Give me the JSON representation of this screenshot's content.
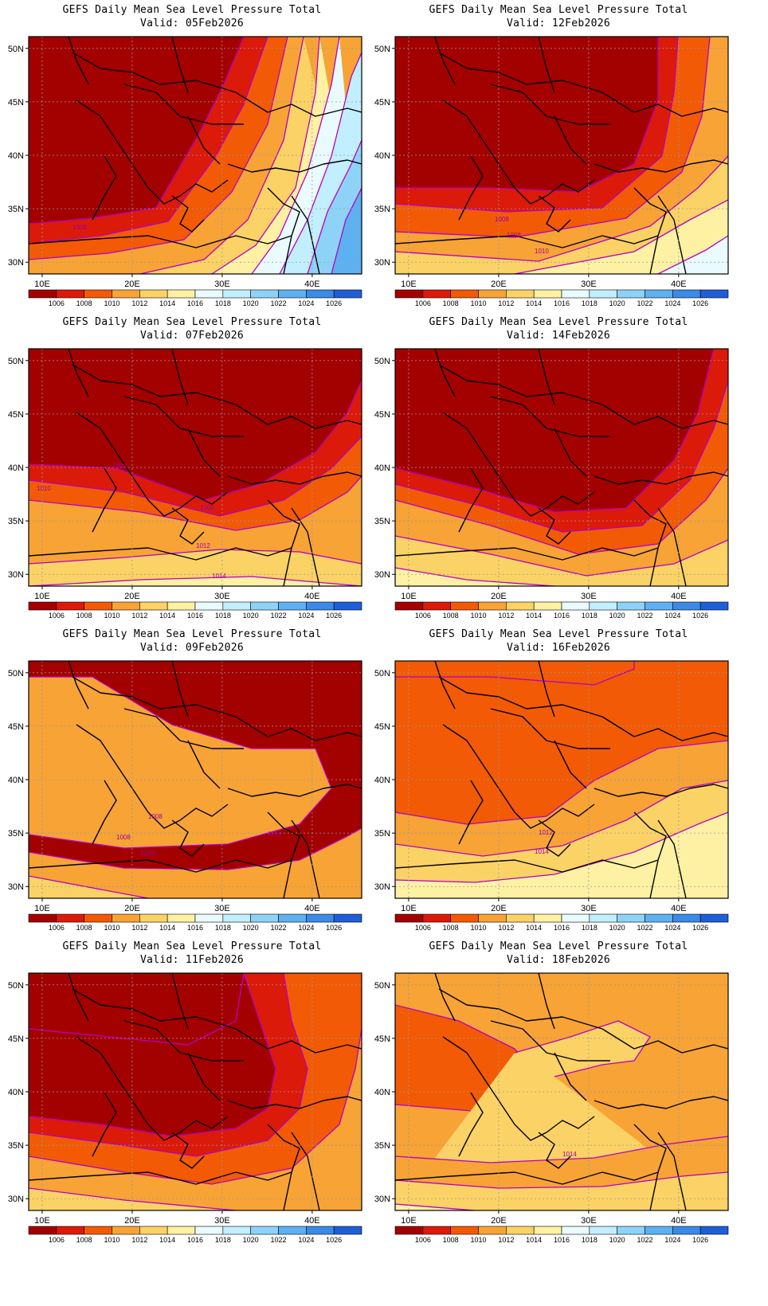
{
  "title_line1": "GEFS Daily Mean Sea Level Pressure Total",
  "lon_labels": [
    "10E",
    "20E",
    "30E",
    "40E"
  ],
  "lat_labels": [
    "50N",
    "45N",
    "40N",
    "35N",
    "30N"
  ],
  "colorbar": {
    "labels": [
      "1006",
      "1008",
      "1010",
      "1012",
      "1014",
      "1016",
      "1018",
      "1020",
      "1022",
      "1024",
      "1026"
    ],
    "colors": [
      "#a30000",
      "#dc1a0a",
      "#f25a05",
      "#f7a336",
      "#fbd265",
      "#fef1a3",
      "#e9fbff",
      "#c2efff",
      "#8ed3f7",
      "#5db1f0",
      "#3b8ae6",
      "#1f5fd6"
    ]
  },
  "contour_line_color": "#b400c8",
  "panels": [
    {
      "valid": "Valid: 05Feb2026",
      "isobar_labels": [
        "1008"
      ]
    },
    {
      "valid": "Valid: 12Feb2026",
      "isobar_labels": [
        "1008",
        "1008",
        "1010"
      ]
    },
    {
      "valid": "Valid: 07Feb2026",
      "isobar_labels": [
        "1008",
        "1010",
        "1008",
        "1012",
        "1014"
      ]
    },
    {
      "valid": "Valid: 14Feb2026",
      "isobar_labels": []
    },
    {
      "valid": "Valid: 09Feb2026",
      "isobar_labels": [
        "1008",
        "1008",
        "1010",
        "1010"
      ]
    },
    {
      "valid": "Valid: 16Feb2026",
      "isobar_labels": [
        "1012",
        "1014"
      ]
    },
    {
      "valid": "Valid: 11Feb2026",
      "isobar_labels": []
    },
    {
      "valid": "Valid: 18Feb2026",
      "isobar_labels": [
        "1014"
      ]
    }
  ]
}
